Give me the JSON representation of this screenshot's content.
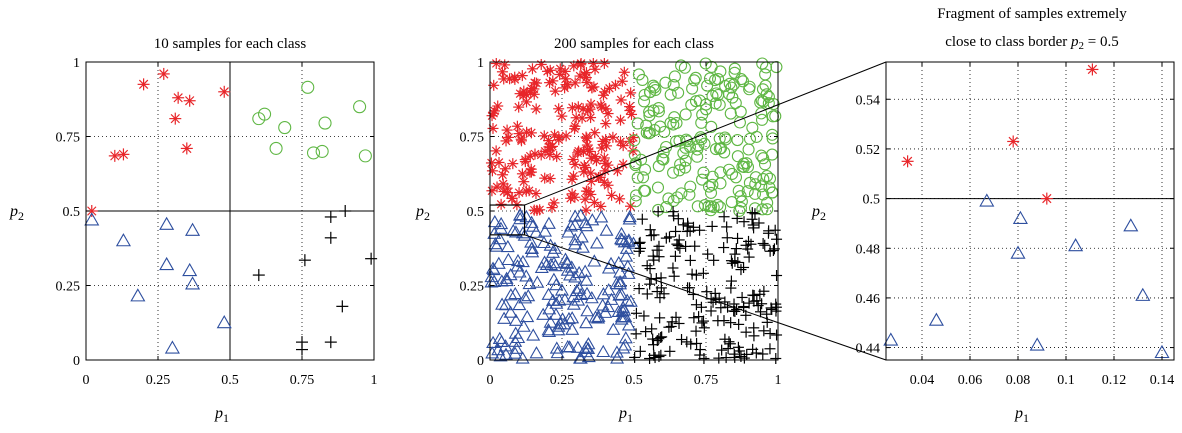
{
  "colors": {
    "class_star": "#e8262a",
    "class_circle": "#5fb744",
    "class_triangle": "#2e4f9f",
    "class_plus": "#000000"
  },
  "chart_data": [
    {
      "type": "scatter",
      "title": "10 samples for each class",
      "xlabel": "p1",
      "ylabel": "p2",
      "xlim": [
        0,
        1
      ],
      "ylim": [
        0,
        1
      ],
      "xticks": [
        "0",
        "0.25",
        "0.5",
        "0.75",
        "1"
      ],
      "yticks": [
        "0",
        "0.25",
        "0.5",
        "0.75",
        "1"
      ],
      "grid": true,
      "dividers": {
        "x": 0.5,
        "y": 0.5
      },
      "series": [
        {
          "marker": "star",
          "color": "#e8262a",
          "points": [
            [
              0.02,
              0.5
            ],
            [
              0.1,
              0.685
            ],
            [
              0.13,
              0.69
            ],
            [
              0.2,
              0.925
            ],
            [
              0.27,
              0.96
            ],
            [
              0.31,
              0.81
            ],
            [
              0.32,
              0.88
            ],
            [
              0.35,
              0.71
            ],
            [
              0.36,
              0.87
            ],
            [
              0.48,
              0.9
            ]
          ]
        },
        {
          "marker": "circle",
          "color": "#5fb744",
          "points": [
            [
              0.6,
              0.81
            ],
            [
              0.62,
              0.825
            ],
            [
              0.66,
              0.71
            ],
            [
              0.69,
              0.78
            ],
            [
              0.77,
              0.915
            ],
            [
              0.79,
              0.695
            ],
            [
              0.82,
              0.7
            ],
            [
              0.83,
              0.795
            ],
            [
              0.95,
              0.85
            ],
            [
              0.97,
              0.685
            ]
          ]
        },
        {
          "marker": "triangle",
          "color": "#2e4f9f",
          "points": [
            [
              0.02,
              0.47
            ],
            [
              0.13,
              0.4
            ],
            [
              0.18,
              0.215
            ],
            [
              0.28,
              0.32
            ],
            [
              0.28,
              0.455
            ],
            [
              0.3,
              0.04
            ],
            [
              0.36,
              0.3
            ],
            [
              0.37,
              0.255
            ],
            [
              0.37,
              0.435
            ],
            [
              0.48,
              0.125
            ]
          ]
        },
        {
          "marker": "plus",
          "color": "#000000",
          "points": [
            [
              0.6,
              0.285
            ],
            [
              0.75,
              0.035
            ],
            [
              0.75,
              0.06
            ],
            [
              0.76,
              0.335
            ],
            [
              0.85,
              0.06
            ],
            [
              0.85,
              0.41
            ],
            [
              0.85,
              0.48
            ],
            [
              0.89,
              0.18
            ],
            [
              0.9,
              0.5
            ],
            [
              0.99,
              0.34
            ]
          ]
        }
      ]
    },
    {
      "type": "scatter",
      "title": "200 samples for each class",
      "xlabel": "p1",
      "ylabel": "p2",
      "xlim": [
        0,
        1
      ],
      "ylim": [
        0,
        1
      ],
      "xticks": [
        "0",
        "0.25",
        "0.5",
        "0.75",
        "1"
      ],
      "yticks": [
        "0",
        "0.25",
        "0.5",
        "0.75",
        "1"
      ],
      "grid": true,
      "zoom_box": {
        "x": [
          0.0,
          0.12
        ],
        "y": [
          0.42,
          0.52
        ]
      },
      "series": [
        {
          "marker": "star",
          "color": "#e8262a",
          "region": {
            "x": [
              0,
              0.5
            ],
            "y": [
              0.5,
              1
            ]
          },
          "count": 200
        },
        {
          "marker": "circle",
          "color": "#5fb744",
          "region": {
            "x": [
              0.5,
              1
            ],
            "y": [
              0.5,
              1
            ]
          },
          "count": 200
        },
        {
          "marker": "triangle",
          "color": "#2e4f9f",
          "region": {
            "x": [
              0,
              0.5
            ],
            "y": [
              0,
              0.5
            ]
          },
          "count": 200
        },
        {
          "marker": "plus",
          "color": "#000000",
          "region": {
            "x": [
              0.5,
              1
            ],
            "y": [
              0,
              0.5
            ]
          },
          "count": 200
        }
      ]
    },
    {
      "type": "scatter",
      "title": [
        "Fragment of samples extremely",
        "close to class border"
      ],
      "title_math": "p2 = 0.5",
      "xlabel": "p1",
      "ylabel": "p2",
      "xlim": [
        0.025,
        0.145
      ],
      "ylim": [
        0.435,
        0.555
      ],
      "xticks": [
        0.04,
        0.06,
        0.08,
        0.1,
        0.12,
        0.14
      ],
      "yticks": [
        0.44,
        0.46,
        0.48,
        0.5,
        0.52,
        0.54
      ],
      "xtick_labels": [
        "0.04",
        "0.06",
        "0.08",
        "0.1",
        "0.12",
        "0.14"
      ],
      "ytick_labels": [
        "0.44",
        "0.46",
        "0.48",
        "0.5",
        "0.52",
        "0.54"
      ],
      "grid": true,
      "dividers": {
        "y": 0.5
      },
      "series": [
        {
          "marker": "star",
          "color": "#e8262a",
          "points": [
            [
              0.034,
              0.515
            ],
            [
              0.078,
              0.523
            ],
            [
              0.092,
              0.5
            ],
            [
              0.111,
              0.552
            ]
          ]
        },
        {
          "marker": "triangle",
          "color": "#2e4f9f",
          "points": [
            [
              0.027,
              0.443
            ],
            [
              0.046,
              0.451
            ],
            [
              0.067,
              0.499
            ],
            [
              0.08,
              0.478
            ],
            [
              0.081,
              0.492
            ],
            [
              0.088,
              0.441
            ],
            [
              0.104,
              0.481
            ],
            [
              0.127,
              0.489
            ],
            [
              0.132,
              0.461
            ],
            [
              0.14,
              0.438
            ]
          ]
        }
      ]
    }
  ]
}
